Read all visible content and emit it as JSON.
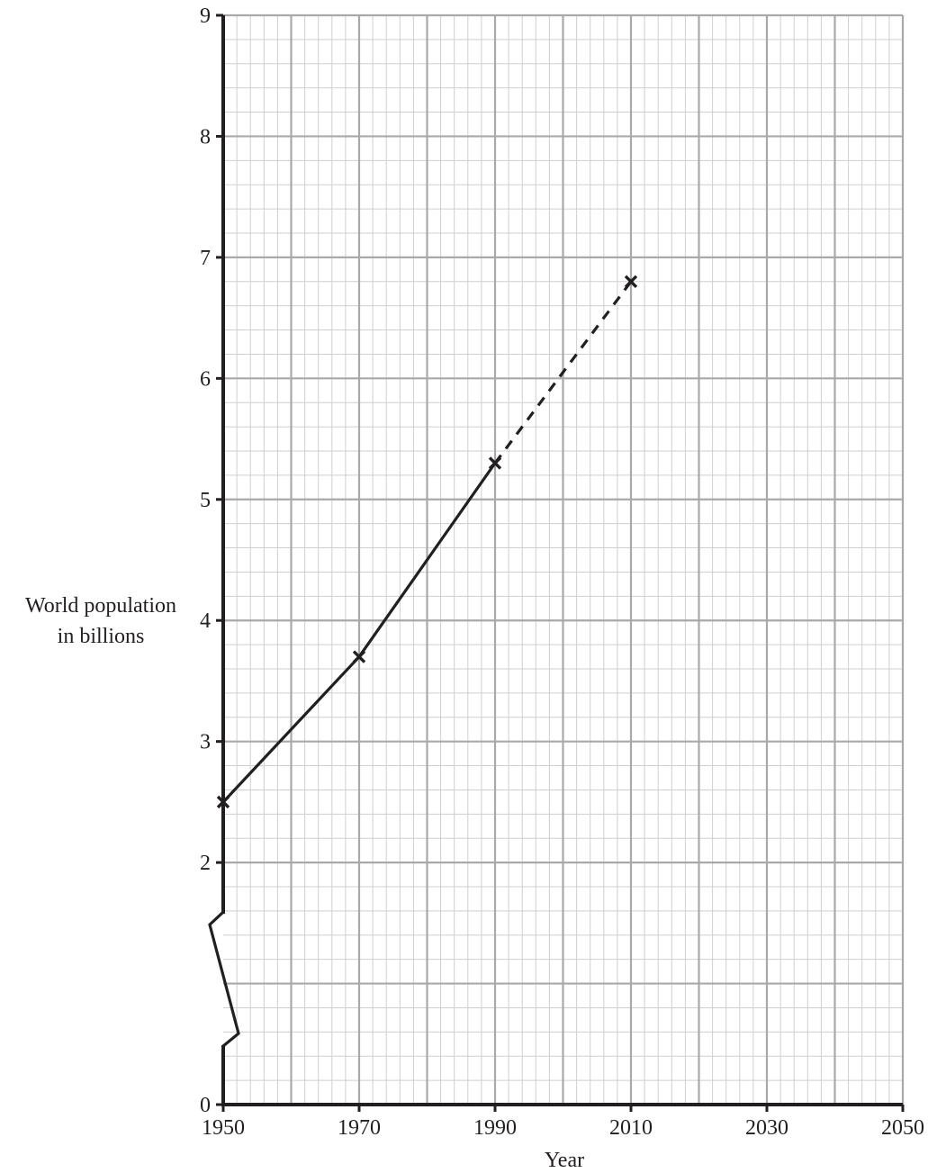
{
  "chart_data": {
    "type": "line",
    "xlabel": "Year",
    "ylabel": [
      "World population",
      "in billions"
    ],
    "xlim": [
      1950,
      2050
    ],
    "ylim": [
      0,
      9
    ],
    "x_ticks": [
      "1950",
      "1970",
      "1990",
      "2010",
      "2030",
      "2050"
    ],
    "y_ticks": [
      "0",
      "2",
      "3",
      "4",
      "5",
      "6",
      "7",
      "8",
      "9"
    ],
    "y_axis_break": [
      0,
      2
    ],
    "grid": true,
    "series": [
      {
        "style": "solid",
        "x": [
          1950,
          1970,
          1990
        ],
        "y": [
          2.5,
          3.7,
          5.3
        ]
      },
      {
        "style": "dashed",
        "x": [
          1990,
          2010
        ],
        "y": [
          5.3,
          6.8
        ]
      }
    ],
    "markers": {
      "symbol": "x",
      "x": [
        1950,
        1970,
        1990,
        2010
      ],
      "y": [
        2.5,
        3.7,
        5.3,
        6.8
      ]
    },
    "colors": {
      "grid_minor": "#cfcfcf",
      "grid_major": "#a9a9a9",
      "ink": "#231f20"
    }
  }
}
